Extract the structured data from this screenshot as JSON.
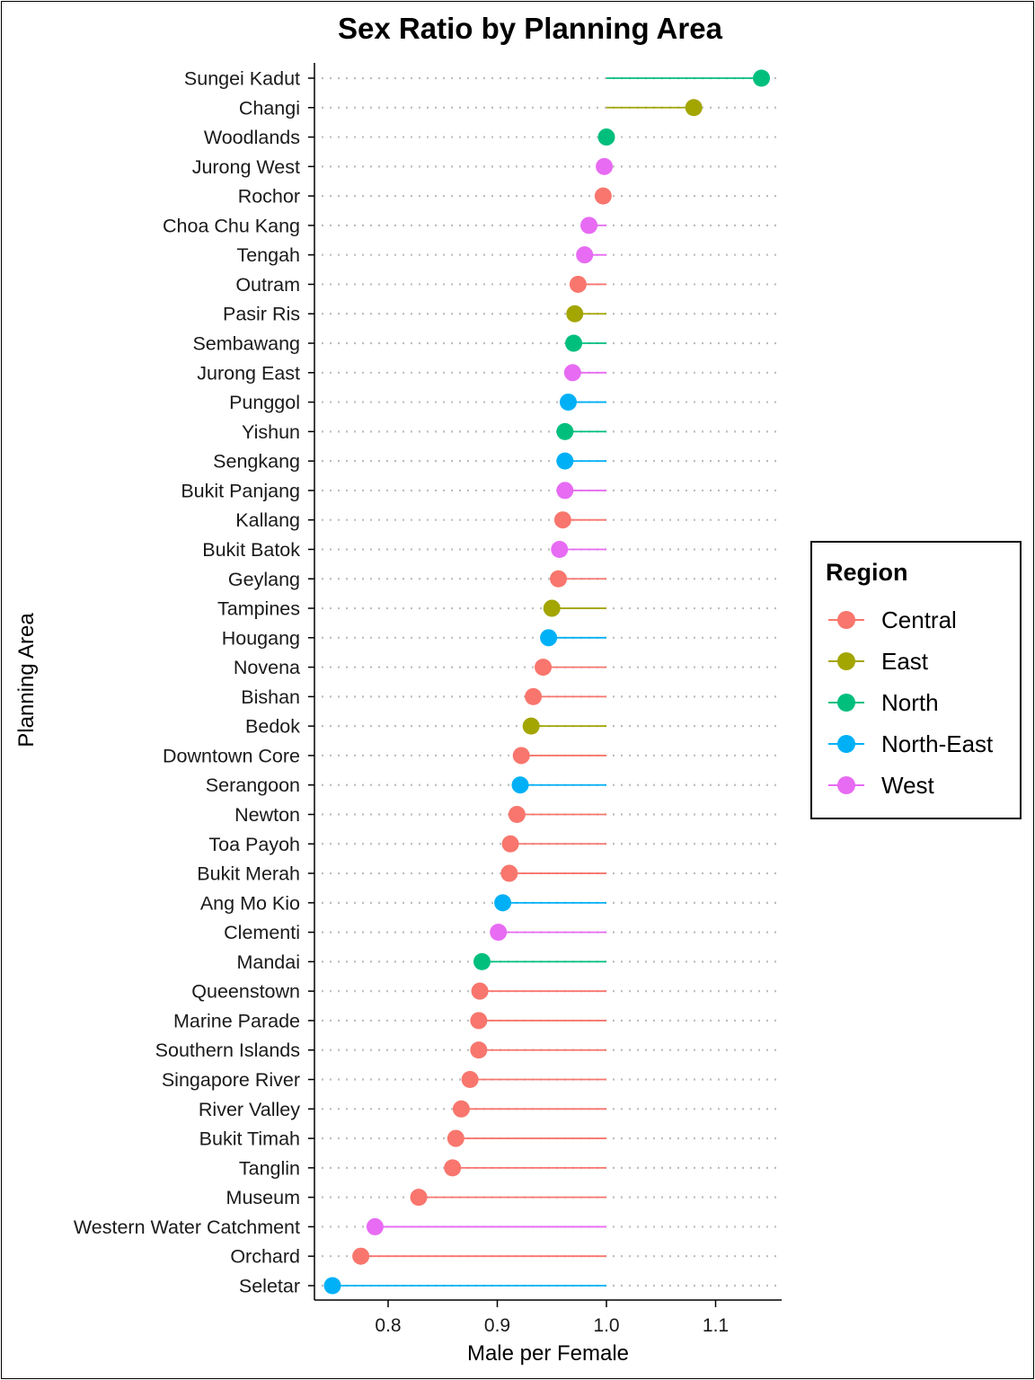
{
  "chart_data": {
    "type": "lollipop",
    "title": "Sex Ratio by Planning Area",
    "xlabel": "Male per Female",
    "ylabel": "Planning Area",
    "baseline": 1.0,
    "xlim": [
      0.745,
      1.16
    ],
    "xticks": [
      0.8,
      0.9,
      1.0,
      1.1
    ],
    "xtick_labels": [
      "0.8",
      "0.9",
      "1.0",
      "1.1"
    ],
    "grid": "dotted horizontal",
    "legend": {
      "title": "Region",
      "position": "right",
      "entries": [
        {
          "name": "Central",
          "color": "#F8766D"
        },
        {
          "name": "East",
          "color": "#A3A500"
        },
        {
          "name": "North",
          "color": "#00BF7D"
        },
        {
          "name": "North-East",
          "color": "#00B0F6"
        },
        {
          "name": "West",
          "color": "#E76BF3"
        }
      ]
    },
    "points": [
      {
        "area": "Sungei Kadut",
        "region": "North",
        "value": 1.142
      },
      {
        "area": "Changi",
        "region": "East",
        "value": 1.08
      },
      {
        "area": "Woodlands",
        "region": "North",
        "value": 1.0
      },
      {
        "area": "Jurong West",
        "region": "West",
        "value": 0.998
      },
      {
        "area": "Rochor",
        "region": "Central",
        "value": 0.997
      },
      {
        "area": "Choa Chu Kang",
        "region": "West",
        "value": 0.984
      },
      {
        "area": "Tengah",
        "region": "West",
        "value": 0.98
      },
      {
        "area": "Outram",
        "region": "Central",
        "value": 0.974
      },
      {
        "area": "Pasir Ris",
        "region": "East",
        "value": 0.971
      },
      {
        "area": "Sembawang",
        "region": "North",
        "value": 0.97
      },
      {
        "area": "Jurong East",
        "region": "West",
        "value": 0.969
      },
      {
        "area": "Punggol",
        "region": "North-East",
        "value": 0.965
      },
      {
        "area": "Yishun",
        "region": "North",
        "value": 0.962
      },
      {
        "area": "Sengkang",
        "region": "North-East",
        "value": 0.962
      },
      {
        "area": "Bukit Panjang",
        "region": "West",
        "value": 0.962
      },
      {
        "area": "Kallang",
        "region": "Central",
        "value": 0.96
      },
      {
        "area": "Bukit Batok",
        "region": "West",
        "value": 0.957
      },
      {
        "area": "Geylang",
        "region": "Central",
        "value": 0.956
      },
      {
        "area": "Tampines",
        "region": "East",
        "value": 0.95
      },
      {
        "area": "Hougang",
        "region": "North-East",
        "value": 0.947
      },
      {
        "area": "Novena",
        "region": "Central",
        "value": 0.942
      },
      {
        "area": "Bishan",
        "region": "Central",
        "value": 0.933
      },
      {
        "area": "Bedok",
        "region": "East",
        "value": 0.931
      },
      {
        "area": "Downtown Core",
        "region": "Central",
        "value": 0.922
      },
      {
        "area": "Serangoon",
        "region": "North-East",
        "value": 0.921
      },
      {
        "area": "Newton",
        "region": "Central",
        "value": 0.918
      },
      {
        "area": "Toa Payoh",
        "region": "Central",
        "value": 0.912
      },
      {
        "area": "Bukit Merah",
        "region": "Central",
        "value": 0.911
      },
      {
        "area": "Ang Mo Kio",
        "region": "North-East",
        "value": 0.905
      },
      {
        "area": "Clementi",
        "region": "West",
        "value": 0.901
      },
      {
        "area": "Mandai",
        "region": "North",
        "value": 0.886
      },
      {
        "area": "Queenstown",
        "region": "Central",
        "value": 0.884
      },
      {
        "area": "Marine Parade",
        "region": "Central",
        "value": 0.883
      },
      {
        "area": "Southern Islands",
        "region": "Central",
        "value": 0.883
      },
      {
        "area": "Singapore River",
        "region": "Central",
        "value": 0.875
      },
      {
        "area": "River Valley",
        "region": "Central",
        "value": 0.867
      },
      {
        "area": "Bukit Timah",
        "region": "Central",
        "value": 0.862
      },
      {
        "area": "Tanglin",
        "region": "Central",
        "value": 0.859
      },
      {
        "area": "Museum",
        "region": "Central",
        "value": 0.828
      },
      {
        "area": "Western Water Catchment",
        "region": "West",
        "value": 0.788
      },
      {
        "area": "Orchard",
        "region": "Central",
        "value": 0.775
      },
      {
        "area": "Seletar",
        "region": "North-East",
        "value": 0.749
      }
    ]
  }
}
